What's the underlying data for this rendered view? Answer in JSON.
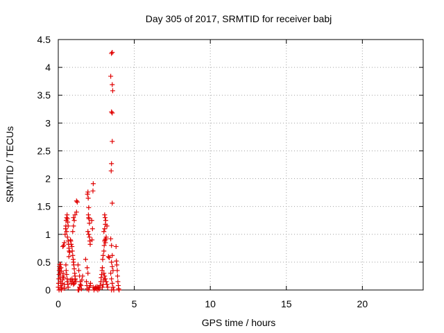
{
  "chart_data": {
    "type": "scatter",
    "title": "Day 305 of 2017, SRMTID for receiver babj",
    "xlabel": "GPS time / hours",
    "ylabel": "SRMTID / TECUs",
    "xlim": [
      0,
      24
    ],
    "ylim": [
      0,
      4.5
    ],
    "xticks": [
      0,
      5,
      10,
      15,
      20
    ],
    "xtick_labels": [
      "0",
      "5",
      "10",
      "15",
      "20"
    ],
    "yticks": [
      0,
      0.5,
      1,
      1.5,
      2,
      2.5,
      3,
      3.5,
      4,
      4.5
    ],
    "ytick_labels": [
      "0",
      "0.5",
      "1",
      "1.5",
      "2",
      "2.5",
      "3",
      "3.5",
      "4",
      "4.5"
    ],
    "grid": true,
    "marker": "+",
    "color": "#e00000",
    "series": [
      {
        "name": "SRMTID",
        "points": [
          [
            0.0,
            0.05
          ],
          [
            0.02,
            0.12
          ],
          [
            0.03,
            0.2
          ],
          [
            0.05,
            0.28
          ],
          [
            0.06,
            0.35
          ],
          [
            0.08,
            0.42
          ],
          [
            0.1,
            0.46
          ],
          [
            0.1,
            0.38
          ],
          [
            0.12,
            0.3
          ],
          [
            0.13,
            0.22
          ],
          [
            0.15,
            0.15
          ],
          [
            0.17,
            0.08
          ],
          [
            0.18,
            0.02
          ],
          [
            0.05,
            0.0
          ],
          [
            0.2,
            0.0
          ],
          [
            0.22,
            0.05
          ],
          [
            0.25,
            0.12
          ],
          [
            0.27,
            0.18
          ],
          [
            0.3,
            0.25
          ],
          [
            0.32,
            0.3
          ],
          [
            0.35,
            0.22
          ],
          [
            0.4,
            0.1
          ],
          [
            0.42,
            0.03
          ],
          [
            0.15,
            0.46
          ],
          [
            0.18,
            0.4
          ],
          [
            0.2,
            0.34
          ],
          [
            0.3,
            0.78
          ],
          [
            0.35,
            0.8
          ],
          [
            0.4,
            0.85
          ],
          [
            0.45,
            1.0
          ],
          [
            0.48,
            1.1
          ],
          [
            0.5,
            1.15
          ],
          [
            0.52,
            1.25
          ],
          [
            0.55,
            1.3
          ],
          [
            0.58,
            1.35
          ],
          [
            0.6,
            1.28
          ],
          [
            0.62,
            1.22
          ],
          [
            0.65,
            1.15
          ],
          [
            0.55,
            1.05
          ],
          [
            0.6,
            0.95
          ],
          [
            0.65,
            0.88
          ],
          [
            0.68,
            0.82
          ],
          [
            0.7,
            0.75
          ],
          [
            0.72,
            0.7
          ],
          [
            0.75,
            0.68
          ],
          [
            0.5,
            0.45
          ],
          [
            0.52,
            0.35
          ],
          [
            0.55,
            0.28
          ],
          [
            0.58,
            0.2
          ],
          [
            0.6,
            0.15
          ],
          [
            0.63,
            0.1
          ],
          [
            0.65,
            0.05
          ],
          [
            0.7,
            0.6
          ],
          [
            0.8,
            0.9
          ],
          [
            0.82,
            0.88
          ],
          [
            0.85,
            0.82
          ],
          [
            0.9,
            0.78
          ],
          [
            0.92,
            0.7
          ],
          [
            0.95,
            0.62
          ],
          [
            0.98,
            0.55
          ],
          [
            1.0,
            0.5
          ],
          [
            1.02,
            0.45
          ],
          [
            1.05,
            0.38
          ],
          [
            1.08,
            0.3
          ],
          [
            1.1,
            0.25
          ],
          [
            1.12,
            0.2
          ],
          [
            1.15,
            0.15
          ],
          [
            0.95,
            1.05
          ],
          [
            1.0,
            1.15
          ],
          [
            1.05,
            1.25
          ],
          [
            1.1,
            1.35
          ],
          [
            1.0,
            1.3
          ],
          [
            1.2,
            1.4
          ],
          [
            0.9,
            0.2
          ],
          [
            0.95,
            0.15
          ],
          [
            1.0,
            0.1
          ],
          [
            1.05,
            0.12
          ],
          [
            1.1,
            0.18
          ],
          [
            0.85,
            0.12
          ],
          [
            0.8,
            0.18
          ],
          [
            1.2,
            1.6
          ],
          [
            1.25,
            1.58
          ],
          [
            1.3,
            0.45
          ],
          [
            1.35,
            0.35
          ],
          [
            1.4,
            0.25
          ],
          [
            1.45,
            0.15
          ],
          [
            1.5,
            0.08
          ],
          [
            1.52,
            0.02
          ],
          [
            1.3,
            0.0
          ],
          [
            1.35,
            0.0
          ],
          [
            1.4,
            0.05
          ],
          [
            1.45,
            0.1
          ],
          [
            1.55,
            0.18
          ],
          [
            1.6,
            0.25
          ],
          [
            1.8,
            0.55
          ],
          [
            1.85,
            0.15
          ],
          [
            1.88,
            0.08
          ],
          [
            1.9,
            0.02
          ],
          [
            1.92,
            1.72
          ],
          [
            1.95,
            1.76
          ],
          [
            1.97,
            1.65
          ],
          [
            2.0,
            1.48
          ],
          [
            1.98,
            1.35
          ],
          [
            2.0,
            1.3
          ],
          [
            2.02,
            1.28
          ],
          [
            2.05,
            1.2
          ],
          [
            1.95,
            1.05
          ],
          [
            2.0,
            1.0
          ],
          [
            2.05,
            0.95
          ],
          [
            2.08,
            0.88
          ],
          [
            2.1,
            0.82
          ],
          [
            2.0,
            0.0
          ],
          [
            2.05,
            0.05
          ],
          [
            2.1,
            0.08
          ],
          [
            2.12,
            0.12
          ],
          [
            1.95,
            0.3
          ],
          [
            1.9,
            0.4
          ],
          [
            2.3,
            1.91
          ],
          [
            2.28,
            1.78
          ],
          [
            2.2,
            1.25
          ],
          [
            2.25,
            1.1
          ],
          [
            2.22,
            0.9
          ],
          [
            2.3,
            0.05
          ],
          [
            2.35,
            0.0
          ],
          [
            2.4,
            0.03
          ],
          [
            2.45,
            0.05
          ],
          [
            2.5,
            0.02
          ],
          [
            2.55,
            0.06
          ],
          [
            2.6,
            0.0
          ],
          [
            2.65,
            0.05
          ],
          [
            2.7,
            0.02
          ],
          [
            2.75,
            0.08
          ],
          [
            2.8,
            0.15
          ],
          [
            2.82,
            0.22
          ],
          [
            2.85,
            0.28
          ],
          [
            2.88,
            0.35
          ],
          [
            2.9,
            0.4
          ],
          [
            2.92,
            0.55
          ],
          [
            2.95,
            0.62
          ],
          [
            3.0,
            0.7
          ],
          [
            3.02,
            0.8
          ],
          [
            3.05,
            0.88
          ],
          [
            3.08,
            0.9
          ],
          [
            3.1,
            0.85
          ],
          [
            3.12,
            0.92
          ],
          [
            3.15,
            0.95
          ],
          [
            3.0,
            1.05
          ],
          [
            3.05,
            1.1
          ],
          [
            3.1,
            1.18
          ],
          [
            3.12,
            1.25
          ],
          [
            3.05,
            1.35
          ],
          [
            3.08,
            1.3
          ],
          [
            3.2,
            1.15
          ],
          [
            3.0,
            0.3
          ],
          [
            3.05,
            0.25
          ],
          [
            3.1,
            0.2
          ],
          [
            3.15,
            0.15
          ],
          [
            3.2,
            0.1
          ],
          [
            3.25,
            0.05
          ],
          [
            3.3,
            0.6
          ],
          [
            3.35,
            0.58
          ],
          [
            2.9,
            0.05
          ],
          [
            2.95,
            0.1
          ],
          [
            3.0,
            0.18
          ],
          [
            3.5,
            4.25
          ],
          [
            3.55,
            4.27
          ],
          [
            3.45,
            3.84
          ],
          [
            3.55,
            3.69
          ],
          [
            3.58,
            3.58
          ],
          [
            3.5,
            3.2
          ],
          [
            3.55,
            3.18
          ],
          [
            3.55,
            2.67
          ],
          [
            3.5,
            2.27
          ],
          [
            3.48,
            2.14
          ],
          [
            3.55,
            1.56
          ],
          [
            3.45,
            0.92
          ],
          [
            3.5,
            0.8
          ],
          [
            3.55,
            0.62
          ],
          [
            3.5,
            0.5
          ],
          [
            3.55,
            0.42
          ],
          [
            3.6,
            0.35
          ],
          [
            3.45,
            0.3
          ],
          [
            3.5,
            0.2
          ],
          [
            3.55,
            0.12
          ],
          [
            3.6,
            0.05
          ],
          [
            3.65,
            0.0
          ],
          [
            3.5,
            0.0
          ],
          [
            3.8,
            0.78
          ],
          [
            3.82,
            0.52
          ],
          [
            3.85,
            0.45
          ],
          [
            3.88,
            0.35
          ],
          [
            3.9,
            0.25
          ],
          [
            3.92,
            0.15
          ],
          [
            3.95,
            0.08
          ],
          [
            3.97,
            0.02
          ],
          [
            4.0,
            0.0
          ]
        ]
      }
    ]
  }
}
